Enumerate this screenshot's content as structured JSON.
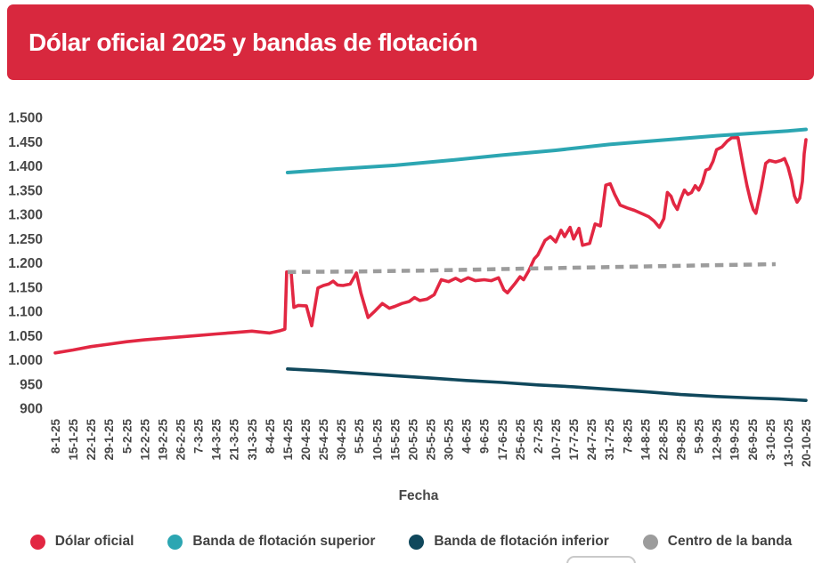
{
  "header": {
    "title": "Dólar oficial 2025 y bandas de flotación",
    "background_color": "#d8283e",
    "text_color": "#ffffff"
  },
  "chart_data": {
    "type": "line",
    "title": "Dólar oficial 2025 y bandas de flotación",
    "xlabel": "Fecha",
    "ylabel": "",
    "ylim": [
      900,
      1500
    ],
    "grid": false,
    "legend_position": "bottom",
    "axis_label_color": "#474747",
    "y_tick_values": [
      1500,
      1450,
      1400,
      1350,
      1300,
      1250,
      1200,
      1150,
      1100,
      1050,
      1000,
      950,
      900
    ],
    "y_tick_labels": [
      "1.500",
      "1.450",
      "1.400",
      "1.350",
      "1.300",
      "1.250",
      "1.200",
      "1.150",
      "1.100",
      "1.050",
      "1.000",
      "950",
      "900"
    ],
    "x_tick_labels": [
      "8-1-25",
      "15-1-25",
      "22-1-25",
      "29-1-25",
      "5-2-25",
      "12-2-25",
      "19-2-25",
      "26-2-25",
      "7-3-25",
      "14-3-25",
      "21-3-25",
      "31-3-25",
      "8-4-25",
      "15-4-25",
      "20-4-25",
      "25-4-25",
      "30-4-25",
      "5-5-25",
      "10-5-25",
      "15-5-25",
      "20-5-25",
      "25-5-25",
      "30-5-25",
      "4-6-25",
      "9-6-25",
      "17-6-25",
      "25-6-25",
      "2-7-25",
      "10-7-25",
      "17-7-25",
      "24-7-25",
      "31-7-25",
      "7-8-25",
      "14-8-25",
      "22-8-25",
      "29-8-25",
      "5-9-25",
      "12-9-25",
      "19-9-25",
      "26-9-25",
      "3-10-25",
      "13-10-25",
      "20-10-25"
    ],
    "series": [
      {
        "name": "Dólar oficial",
        "color": "#e22742",
        "style": "solid",
        "width": 3.6,
        "points": [
          [
            0,
            1016
          ],
          [
            1,
            1022
          ],
          [
            2,
            1029
          ],
          [
            3,
            1034
          ],
          [
            4,
            1039
          ],
          [
            5,
            1043
          ],
          [
            6,
            1046
          ],
          [
            7,
            1049
          ],
          [
            8,
            1052
          ],
          [
            9,
            1055
          ],
          [
            10,
            1058
          ],
          [
            11,
            1061
          ],
          [
            12,
            1057
          ],
          [
            12.6,
            1062
          ],
          [
            12.85,
            1065
          ],
          [
            12.95,
            1183
          ],
          [
            13.2,
            1183
          ],
          [
            13.35,
            1110
          ],
          [
            13.6,
            1114
          ],
          [
            14.05,
            1113
          ],
          [
            14.35,
            1072
          ],
          [
            14.7,
            1150
          ],
          [
            15,
            1155
          ],
          [
            15.3,
            1158
          ],
          [
            15.55,
            1164
          ],
          [
            15.8,
            1156
          ],
          [
            16.1,
            1155
          ],
          [
            16.5,
            1158
          ],
          [
            16.85,
            1181
          ],
          [
            17.1,
            1140
          ],
          [
            17.5,
            1089
          ],
          [
            17.9,
            1103
          ],
          [
            18.3,
            1118
          ],
          [
            18.7,
            1108
          ],
          [
            19,
            1112
          ],
          [
            19.4,
            1118
          ],
          [
            19.8,
            1122
          ],
          [
            20.1,
            1130
          ],
          [
            20.4,
            1124
          ],
          [
            20.8,
            1127
          ],
          [
            21.2,
            1136
          ],
          [
            21.6,
            1167
          ],
          [
            22,
            1163
          ],
          [
            22.4,
            1170
          ],
          [
            22.7,
            1164
          ],
          [
            23.1,
            1171
          ],
          [
            23.5,
            1165
          ],
          [
            24,
            1167
          ],
          [
            24.4,
            1165
          ],
          [
            24.8,
            1171
          ],
          [
            25.1,
            1146
          ],
          [
            25.3,
            1140
          ],
          [
            25.7,
            1158
          ],
          [
            26,
            1173
          ],
          [
            26.2,
            1167
          ],
          [
            26.5,
            1186
          ],
          [
            26.8,
            1210
          ],
          [
            27,
            1218
          ],
          [
            27.4,
            1248
          ],
          [
            27.7,
            1256
          ],
          [
            28,
            1245
          ],
          [
            28.3,
            1269
          ],
          [
            28.5,
            1256
          ],
          [
            28.8,
            1275
          ],
          [
            29,
            1251
          ],
          [
            29.3,
            1273
          ],
          [
            29.5,
            1238
          ],
          [
            29.9,
            1242
          ],
          [
            30.2,
            1282
          ],
          [
            30.5,
            1278
          ],
          [
            30.8,
            1362
          ],
          [
            31.05,
            1365
          ],
          [
            31.3,
            1343
          ],
          [
            31.6,
            1321
          ],
          [
            32,
            1315
          ],
          [
            32.4,
            1310
          ],
          [
            32.9,
            1302
          ],
          [
            33.2,
            1297
          ],
          [
            33.5,
            1288
          ],
          [
            33.8,
            1275
          ],
          [
            34.05,
            1293
          ],
          [
            34.25,
            1347
          ],
          [
            34.45,
            1339
          ],
          [
            34.6,
            1324
          ],
          [
            34.8,
            1312
          ],
          [
            35,
            1334
          ],
          [
            35.2,
            1352
          ],
          [
            35.4,
            1343
          ],
          [
            35.6,
            1347
          ],
          [
            35.8,
            1361
          ],
          [
            36,
            1352
          ],
          [
            36.2,
            1367
          ],
          [
            36.4,
            1393
          ],
          [
            36.6,
            1396
          ],
          [
            36.8,
            1411
          ],
          [
            37,
            1435
          ],
          [
            37.3,
            1441
          ],
          [
            37.6,
            1453
          ],
          [
            37.85,
            1460
          ],
          [
            38.2,
            1460
          ],
          [
            38.5,
            1398
          ],
          [
            38.7,
            1361
          ],
          [
            38.9,
            1330
          ],
          [
            39.05,
            1312
          ],
          [
            39.2,
            1304
          ],
          [
            39.5,
            1356
          ],
          [
            39.75,
            1407
          ],
          [
            39.95,
            1413
          ],
          [
            40.3,
            1410
          ],
          [
            40.6,
            1413
          ],
          [
            40.8,
            1417
          ],
          [
            41,
            1399
          ],
          [
            41.2,
            1371
          ],
          [
            41.35,
            1340
          ],
          [
            41.5,
            1327
          ],
          [
            41.65,
            1335
          ],
          [
            41.8,
            1370
          ],
          [
            41.9,
            1427
          ],
          [
            42,
            1456
          ]
        ]
      },
      {
        "name": "Banda de flotación superior",
        "color": "#2ca6b2",
        "style": "solid",
        "width": 4,
        "points": [
          [
            13,
            1388
          ],
          [
            16,
            1396
          ],
          [
            19,
            1403
          ],
          [
            22,
            1413
          ],
          [
            25,
            1424
          ],
          [
            28,
            1434
          ],
          [
            31,
            1446
          ],
          [
            34,
            1455
          ],
          [
            37,
            1464
          ],
          [
            39,
            1469
          ],
          [
            41,
            1474
          ],
          [
            42,
            1477
          ]
        ]
      },
      {
        "name": "Banda de flotación inferior",
        "color": "#10485c",
        "style": "solid",
        "width": 3.6,
        "points": [
          [
            13,
            983
          ],
          [
            15,
            979
          ],
          [
            17,
            974
          ],
          [
            19,
            969
          ],
          [
            21,
            964
          ],
          [
            23,
            959
          ],
          [
            25,
            955
          ],
          [
            27,
            950
          ],
          [
            29,
            946
          ],
          [
            31,
            941
          ],
          [
            33,
            936
          ],
          [
            35,
            930
          ],
          [
            37,
            926
          ],
          [
            39,
            923
          ],
          [
            40.5,
            921
          ],
          [
            42,
            918
          ]
        ]
      },
      {
        "name": "Centro de la banda",
        "color": "#9c9c9c",
        "style": "dashed",
        "width": 4.5,
        "points": [
          [
            13,
            1183
          ],
          [
            17,
            1184
          ],
          [
            21,
            1186
          ],
          [
            25,
            1189
          ],
          [
            28,
            1191
          ],
          [
            31,
            1193
          ],
          [
            34,
            1195
          ],
          [
            37,
            1197
          ],
          [
            40.3,
            1199
          ]
        ]
      }
    ]
  },
  "legend": {
    "items": [
      {
        "label": "Dólar oficial",
        "color": "#e22742"
      },
      {
        "label": "Banda de flotación superior",
        "color": "#2ca6b2"
      },
      {
        "label": "Banda de flotación inferior",
        "color": "#10485c"
      },
      {
        "label": "Centro de la banda",
        "color": "#9c9c9c"
      }
    ]
  }
}
